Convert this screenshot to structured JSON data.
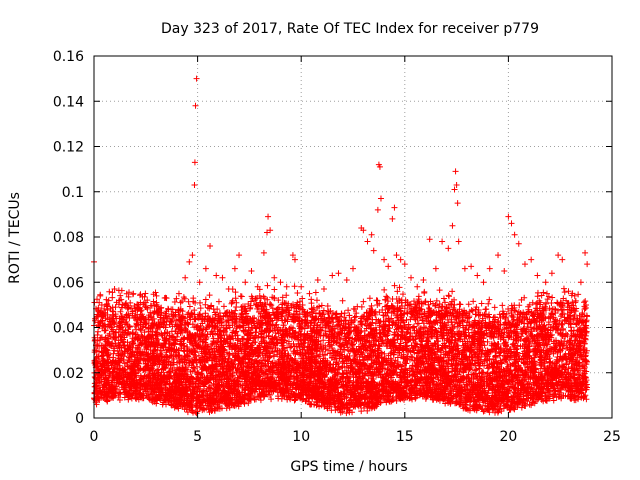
{
  "chart_data": {
    "type": "scatter",
    "title": "Day 323 of 2017, Rate Of TEC Index for receiver p779",
    "xlabel": "GPS time / hours",
    "ylabel": "ROTI / TECUs",
    "xlim": [
      0,
      25
    ],
    "ylim": [
      0,
      0.16
    ],
    "xticks": [
      0,
      5,
      10,
      15,
      20,
      25
    ],
    "yticks": [
      0,
      0.02,
      0.04,
      0.06,
      0.08,
      0.1,
      0.12,
      0.14,
      0.16
    ],
    "xtick_labels": [
      "0",
      "5",
      "10",
      "15",
      "20",
      "25"
    ],
    "ytick_labels": [
      "0",
      "0.02",
      "0.04",
      "0.06",
      "0.08",
      "0.1",
      "0.12",
      "0.14",
      "0.16"
    ],
    "grid": true,
    "marker": "+",
    "series": [
      {
        "name": "ROTI",
        "color": "#ff0000",
        "points": [
          [
            0.0,
            0.069
          ],
          [
            0.05,
            0.043
          ],
          [
            0.1,
            0.032
          ],
          [
            0.2,
            0.045
          ],
          [
            0.25,
            0.051
          ],
          [
            0.3,
            0.054
          ],
          [
            0.5,
            0.03
          ],
          [
            0.7,
            0.028
          ],
          [
            1.0,
            0.035
          ],
          [
            1.3,
            0.042
          ],
          [
            1.5,
            0.038
          ],
          [
            1.9,
            0.055
          ],
          [
            2.2,
            0.044
          ],
          [
            2.5,
            0.051
          ],
          [
            2.8,
            0.041
          ],
          [
            3.1,
            0.046
          ],
          [
            3.5,
            0.053
          ],
          [
            3.8,
            0.048
          ],
          [
            4.1,
            0.055
          ],
          [
            4.4,
            0.062
          ],
          [
            4.6,
            0.069
          ],
          [
            4.75,
            0.072
          ],
          [
            4.85,
            0.103
          ],
          [
            4.87,
            0.113
          ],
          [
            4.9,
            0.138
          ],
          [
            4.95,
            0.15
          ],
          [
            5.1,
            0.06
          ],
          [
            5.4,
            0.066
          ],
          [
            5.6,
            0.076
          ],
          [
            5.9,
            0.063
          ],
          [
            6.2,
            0.062
          ],
          [
            6.5,
            0.057
          ],
          [
            6.8,
            0.066
          ],
          [
            7.0,
            0.072
          ],
          [
            7.3,
            0.06
          ],
          [
            7.6,
            0.065
          ],
          [
            7.9,
            0.058
          ],
          [
            8.2,
            0.073
          ],
          [
            8.35,
            0.082
          ],
          [
            8.4,
            0.089
          ],
          [
            8.5,
            0.083
          ],
          [
            8.7,
            0.062
          ],
          [
            9.0,
            0.06
          ],
          [
            9.3,
            0.058
          ],
          [
            9.6,
            0.072
          ],
          [
            9.7,
            0.07
          ],
          [
            10.0,
            0.058
          ],
          [
            10.4,
            0.055
          ],
          [
            10.8,
            0.061
          ],
          [
            11.1,
            0.057
          ],
          [
            11.5,
            0.063
          ],
          [
            11.8,
            0.064
          ],
          [
            12.2,
            0.061
          ],
          [
            12.5,
            0.066
          ],
          [
            12.9,
            0.084
          ],
          [
            13.0,
            0.083
          ],
          [
            13.2,
            0.078
          ],
          [
            13.4,
            0.081
          ],
          [
            13.5,
            0.074
          ],
          [
            13.7,
            0.092
          ],
          [
            13.75,
            0.112
          ],
          [
            13.8,
            0.111
          ],
          [
            13.85,
            0.097
          ],
          [
            14.0,
            0.07
          ],
          [
            14.2,
            0.067
          ],
          [
            14.4,
            0.088
          ],
          [
            14.5,
            0.093
          ],
          [
            14.6,
            0.072
          ],
          [
            14.8,
            0.07
          ],
          [
            15.0,
            0.068
          ],
          [
            15.3,
            0.062
          ],
          [
            15.6,
            0.058
          ],
          [
            15.9,
            0.061
          ],
          [
            16.2,
            0.079
          ],
          [
            16.5,
            0.066
          ],
          [
            16.8,
            0.078
          ],
          [
            17.1,
            0.075
          ],
          [
            17.3,
            0.085
          ],
          [
            17.4,
            0.101
          ],
          [
            17.45,
            0.109
          ],
          [
            17.5,
            0.103
          ],
          [
            17.55,
            0.095
          ],
          [
            17.6,
            0.078
          ],
          [
            17.9,
            0.066
          ],
          [
            18.2,
            0.067
          ],
          [
            18.5,
            0.063
          ],
          [
            18.8,
            0.06
          ],
          [
            19.1,
            0.066
          ],
          [
            19.5,
            0.072
          ],
          [
            19.8,
            0.065
          ],
          [
            20.0,
            0.089
          ],
          [
            20.15,
            0.086
          ],
          [
            20.3,
            0.081
          ],
          [
            20.5,
            0.077
          ],
          [
            20.8,
            0.068
          ],
          [
            21.1,
            0.07
          ],
          [
            21.4,
            0.063
          ],
          [
            21.8,
            0.06
          ],
          [
            22.1,
            0.064
          ],
          [
            22.4,
            0.072
          ],
          [
            22.6,
            0.07
          ],
          [
            22.9,
            0.056
          ],
          [
            23.2,
            0.054
          ],
          [
            23.5,
            0.06
          ],
          [
            23.7,
            0.073
          ],
          [
            23.8,
            0.068
          ]
        ]
      }
    ]
  }
}
